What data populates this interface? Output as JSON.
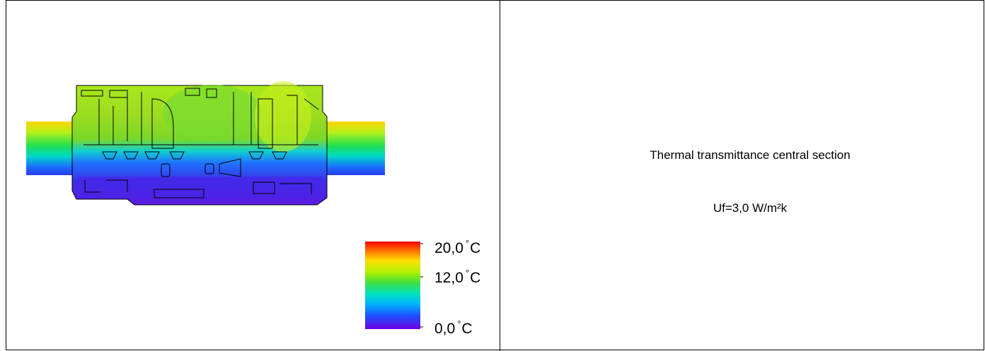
{
  "figure": {
    "legend": {
      "max_label": "20,0",
      "mid_label": "12,0",
      "min_label": "0,0",
      "unit": "C",
      "degree_symbol": "°"
    },
    "info": {
      "title": "Thermal transmittance central section",
      "value": "Uf=3,0 W/m²k"
    },
    "colors": {
      "hot": "#ff0000",
      "warm": "#ffd200",
      "mid": "#32dc32",
      "cool": "#0080ff",
      "cold": "#6a00e6"
    }
  }
}
